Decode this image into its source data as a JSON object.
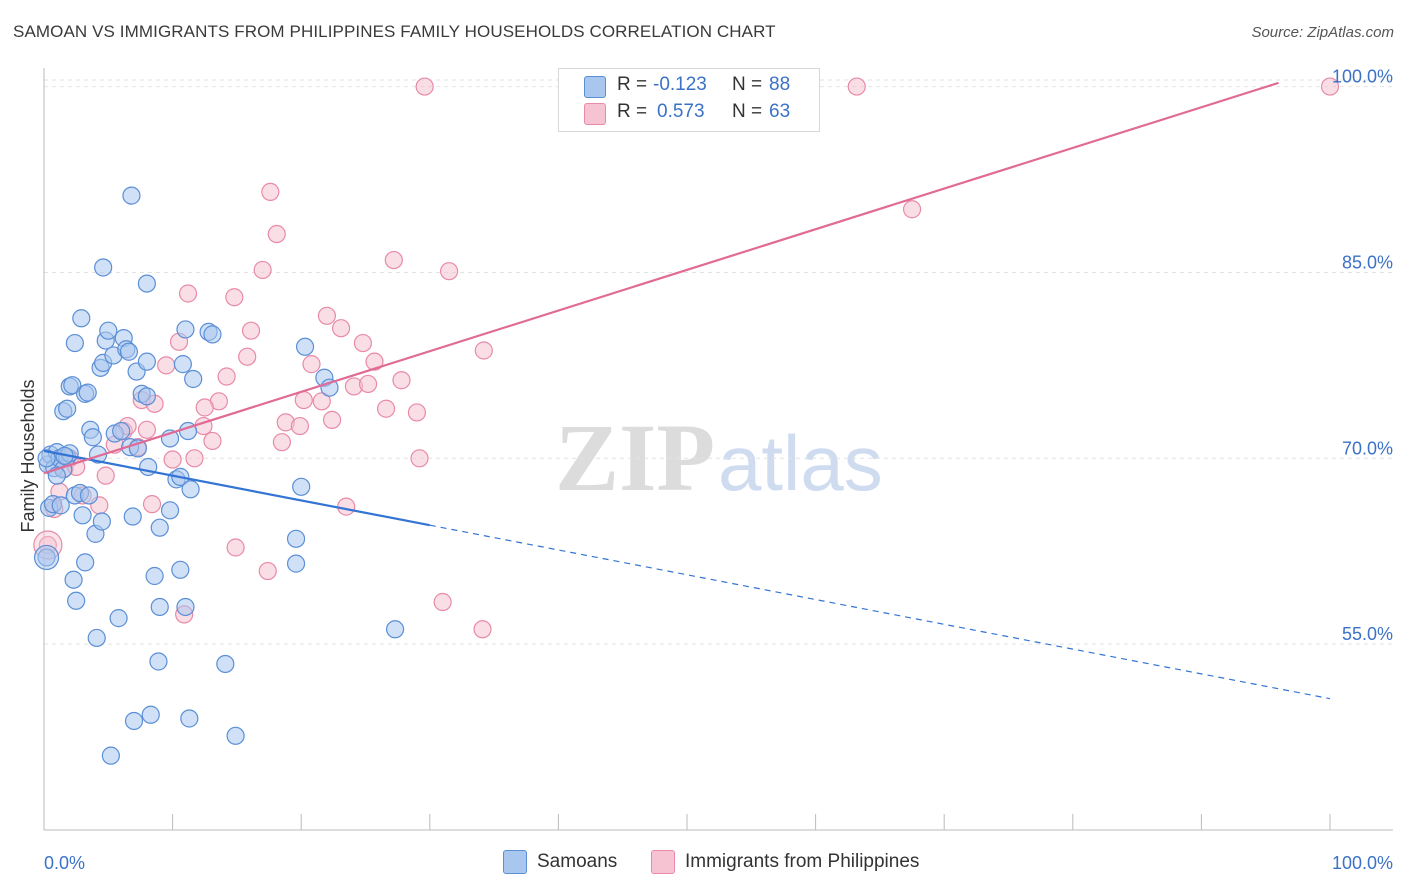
{
  "title": "SAMOAN VS IMMIGRANTS FROM PHILIPPINES FAMILY HOUSEHOLDS CORRELATION CHART",
  "source": "Source: ZipAtlas.com",
  "watermark": {
    "zip": "ZIP",
    "atlas": "atlas"
  },
  "colors": {
    "blue_fill": "#a9c6ef",
    "blue_stroke": "#5b8fd6",
    "blue_line": "#3474d4",
    "pink_fill": "#f6c3d2",
    "pink_stroke": "#e88aa8",
    "pink_line": "#e06b95",
    "tick_label": "#3b72c7",
    "grid": "#e2e2e2"
  },
  "legend": {
    "rows": [
      {
        "r_label": "R =",
        "r_value": "-0.123",
        "n_label": "N =",
        "n_value": "88"
      },
      {
        "r_label": "R =",
        "r_value": "0.573",
        "n_label": "N =",
        "n_value": "63"
      }
    ],
    "series_names": [
      "Samoans",
      "Immigrants from Philippines"
    ]
  },
  "chart_data": {
    "type": "scatter",
    "title": "SAMOAN VS IMMIGRANTS FROM PHILIPPINES FAMILY HOUSEHOLDS CORRELATION CHART",
    "xlabel": "",
    "ylabel": "Family Households",
    "xlim": [
      0,
      100
    ],
    "ylim": [
      40,
      101.5
    ],
    "x_tick_labels": [
      "0.0%",
      "100.0%"
    ],
    "y_ticks": [
      55,
      70,
      85,
      100
    ],
    "y_tick_labels": [
      "55.0%",
      "70.0%",
      "85.0%",
      "100.0%"
    ],
    "series": [
      {
        "name": "Samoans",
        "r": -0.123,
        "n": 88,
        "trend": {
          "x0": 0,
          "y0": 70.6,
          "x1": 30,
          "y1": 64.6,
          "dashed_to_x": 100,
          "dashed_to_y": 50.6
        },
        "points": [
          [
            0.3,
            69.5
          ],
          [
            0.5,
            70.3
          ],
          [
            0.8,
            69.2
          ],
          [
            1.0,
            70.5
          ],
          [
            1.2,
            70.0
          ],
          [
            1.5,
            69.1
          ],
          [
            1.8,
            70.1
          ],
          [
            2.0,
            70.4
          ],
          [
            0.4,
            66.0
          ],
          [
            0.7,
            66.3
          ],
          [
            1.3,
            66.2
          ],
          [
            2.4,
            67.0
          ],
          [
            2.8,
            67.2
          ],
          [
            3.5,
            67.0
          ],
          [
            0.2,
            62.0
          ],
          [
            1.5,
            73.8
          ],
          [
            1.8,
            74.0
          ],
          [
            2.0,
            75.8
          ],
          [
            2.2,
            75.9
          ],
          [
            3.2,
            75.2
          ],
          [
            3.4,
            75.3
          ],
          [
            3.6,
            72.3
          ],
          [
            3.8,
            71.7
          ],
          [
            4.2,
            70.3
          ],
          [
            5.5,
            72.0
          ],
          [
            6.0,
            72.2
          ],
          [
            6.7,
            70.9
          ],
          [
            7.3,
            70.8
          ],
          [
            8.1,
            69.3
          ],
          [
            2.4,
            79.3
          ],
          [
            2.9,
            81.3
          ],
          [
            4.4,
            77.3
          ],
          [
            4.6,
            77.7
          ],
          [
            4.8,
            79.5
          ],
          [
            5.0,
            80.3
          ],
          [
            5.4,
            78.3
          ],
          [
            6.2,
            79.7
          ],
          [
            6.4,
            78.8
          ],
          [
            6.6,
            78.6
          ],
          [
            7.2,
            77.0
          ],
          [
            8.0,
            77.8
          ],
          [
            7.6,
            75.2
          ],
          [
            8.0,
            75.0
          ],
          [
            9.8,
            71.6
          ],
          [
            10.3,
            68.3
          ],
          [
            10.6,
            68.5
          ],
          [
            11.4,
            67.5
          ],
          [
            11.2,
            72.2
          ],
          [
            11.6,
            76.4
          ],
          [
            12.8,
            80.2
          ],
          [
            13.1,
            80.0
          ],
          [
            10.8,
            77.6
          ],
          [
            11.0,
            80.4
          ],
          [
            3.0,
            65.4
          ],
          [
            4.0,
            63.9
          ],
          [
            4.5,
            64.9
          ],
          [
            6.9,
            65.3
          ],
          [
            9.0,
            64.4
          ],
          [
            9.8,
            65.8
          ],
          [
            2.3,
            60.2
          ],
          [
            3.2,
            61.6
          ],
          [
            2.5,
            58.5
          ],
          [
            8.6,
            60.5
          ],
          [
            10.6,
            61.0
          ],
          [
            9.0,
            58.0
          ],
          [
            11.0,
            58.0
          ],
          [
            4.1,
            55.5
          ],
          [
            5.8,
            57.1
          ],
          [
            8.9,
            53.6
          ],
          [
            14.1,
            53.4
          ],
          [
            7.0,
            48.8
          ],
          [
            8.3,
            49.3
          ],
          [
            11.3,
            49.0
          ],
          [
            14.9,
            47.6
          ],
          [
            5.2,
            46.0
          ],
          [
            6.8,
            91.2
          ],
          [
            8.0,
            84.1
          ],
          [
            4.6,
            85.4
          ],
          [
            20.3,
            79.0
          ],
          [
            21.8,
            76.5
          ],
          [
            22.2,
            75.7
          ],
          [
            19.6,
            63.5
          ],
          [
            20.0,
            67.7
          ],
          [
            19.6,
            61.5
          ],
          [
            27.3,
            56.2
          ],
          [
            0.2,
            70.0
          ],
          [
            1.0,
            68.6
          ],
          [
            1.6,
            70.2
          ]
        ]
      },
      {
        "name": "Immigrants from Philippines",
        "r": 0.573,
        "n": 63,
        "trend": {
          "x0": 0,
          "y0": 68.8,
          "x1": 96,
          "y1": 100.3
        },
        "points": [
          [
            0.3,
            63.0
          ],
          [
            0.8,
            65.9
          ],
          [
            1.2,
            67.3
          ],
          [
            1.6,
            69.2
          ],
          [
            2.0,
            70.0
          ],
          [
            2.5,
            69.3
          ],
          [
            3.0,
            67.0
          ],
          [
            4.3,
            66.2
          ],
          [
            4.8,
            68.6
          ],
          [
            5.5,
            71.1
          ],
          [
            6.2,
            72.2
          ],
          [
            6.5,
            72.6
          ],
          [
            7.3,
            70.9
          ],
          [
            8.0,
            72.3
          ],
          [
            7.6,
            74.7
          ],
          [
            8.6,
            74.4
          ],
          [
            8.4,
            66.3
          ],
          [
            9.5,
            77.5
          ],
          [
            10.0,
            69.9
          ],
          [
            10.5,
            79.4
          ],
          [
            11.7,
            70.0
          ],
          [
            12.4,
            72.6
          ],
          [
            13.1,
            71.4
          ],
          [
            13.6,
            74.6
          ],
          [
            12.5,
            74.1
          ],
          [
            11.2,
            83.3
          ],
          [
            14.8,
            83.0
          ],
          [
            14.2,
            76.6
          ],
          [
            15.8,
            78.2
          ],
          [
            16.1,
            80.3
          ],
          [
            17.0,
            85.2
          ],
          [
            17.6,
            91.5
          ],
          [
            18.1,
            88.1
          ],
          [
            18.5,
            71.3
          ],
          [
            18.8,
            72.9
          ],
          [
            19.9,
            72.6
          ],
          [
            20.2,
            74.7
          ],
          [
            20.8,
            77.6
          ],
          [
            21.6,
            74.6
          ],
          [
            22.0,
            81.5
          ],
          [
            22.4,
            73.1
          ],
          [
            23.1,
            80.5
          ],
          [
            24.1,
            75.8
          ],
          [
            24.8,
            79.3
          ],
          [
            25.2,
            76.0
          ],
          [
            25.7,
            77.8
          ],
          [
            26.6,
            74.0
          ],
          [
            27.2,
            86.0
          ],
          [
            27.8,
            76.3
          ],
          [
            29.0,
            73.7
          ],
          [
            29.2,
            70.0
          ],
          [
            31.5,
            85.1
          ],
          [
            34.2,
            78.7
          ],
          [
            14.9,
            62.8
          ],
          [
            17.4,
            60.9
          ],
          [
            10.9,
            57.4
          ],
          [
            31.0,
            58.4
          ],
          [
            34.1,
            56.2
          ],
          [
            23.5,
            66.1
          ],
          [
            29.6,
            100.0
          ],
          [
            63.2,
            100.0
          ],
          [
            67.5,
            90.1
          ],
          [
            100.0,
            100.0
          ]
        ]
      }
    ]
  }
}
